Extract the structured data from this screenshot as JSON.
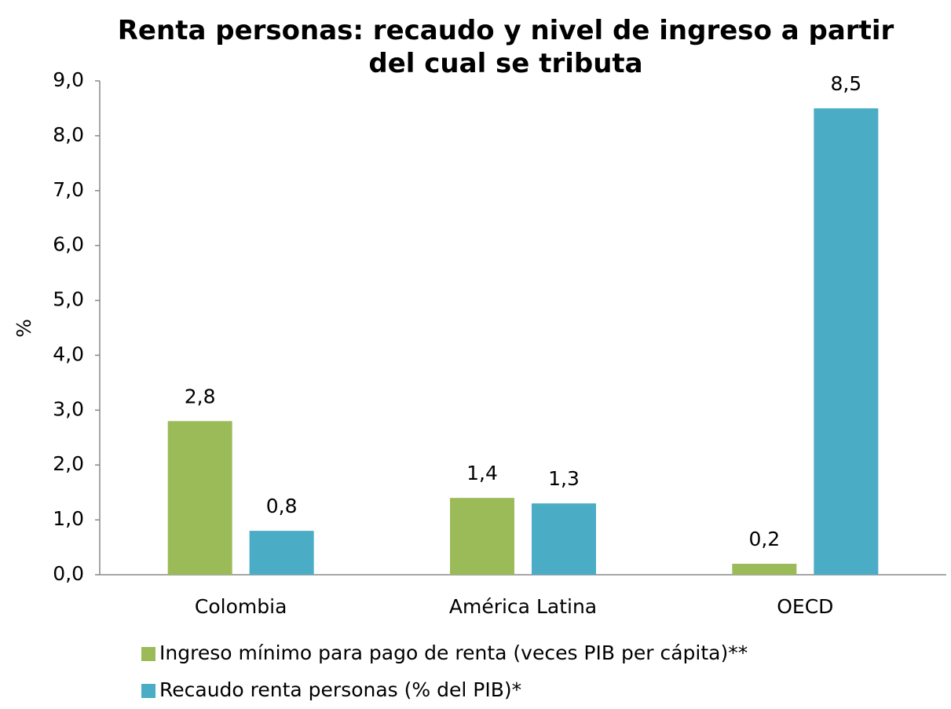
{
  "chart_data": {
    "type": "bar",
    "title": "Renta personas: recaudo y nivel de ingreso a partir del cual se tributa",
    "y_label": "%",
    "categories": [
      "Colombia",
      "América Latina",
      "OECD"
    ],
    "series": [
      {
        "name": "Ingreso mínimo para pago de renta (veces PIB per cápita)**",
        "color": "#9bbb59",
        "values": [
          2.8,
          1.4,
          0.2
        ],
        "value_labels": [
          "2,8",
          "1,4",
          "0,2"
        ]
      },
      {
        "name": "Recaudo renta personas (% del PIB)*",
        "color": "#4bacc6",
        "values": [
          0.8,
          1.3,
          8.5
        ],
        "value_labels": [
          "0,8",
          "1,3",
          "8,5"
        ]
      }
    ],
    "ylim": [
      0,
      9
    ],
    "yticks": [
      {
        "value": 0,
        "label": "0,0"
      },
      {
        "value": 1,
        "label": "1,0"
      },
      {
        "value": 2,
        "label": "2,0"
      },
      {
        "value": 3,
        "label": "3,0"
      },
      {
        "value": 4,
        "label": "4,0"
      },
      {
        "value": 5,
        "label": "5,0"
      },
      {
        "value": 6,
        "label": "6,0"
      },
      {
        "value": 7,
        "label": "7,0"
      },
      {
        "value": 8,
        "label": "8,0"
      },
      {
        "value": 9,
        "label": "9,0"
      }
    ],
    "grid": false,
    "legend": "bottom"
  }
}
